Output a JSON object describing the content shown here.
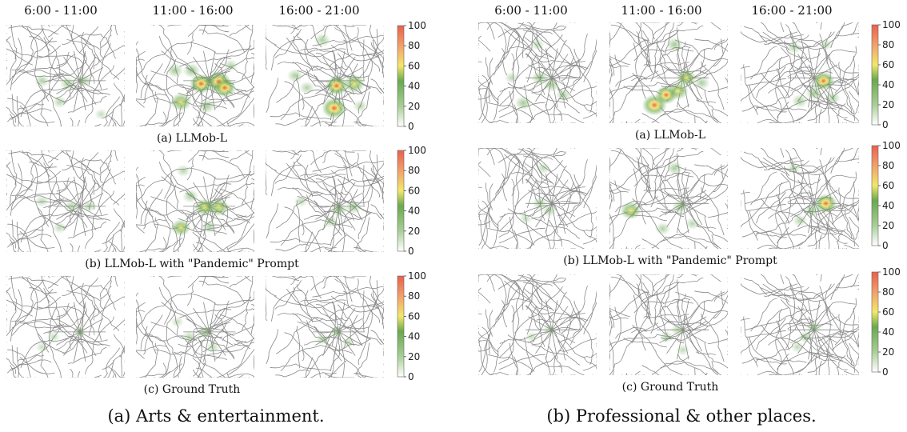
{
  "chart_data": [
    {
      "type": "heatmap",
      "subfigure_caption": "(a) Arts & entertainment.",
      "columns": [
        "6:00 - 11:00",
        "11:00 - 16:00",
        "16:00 - 21:00"
      ],
      "rows": [
        {
          "caption": "(a) LLMob-L",
          "peaks": [
            [
              {
                "x": 0.3,
                "y": 0.55,
                "v": 30
              },
              {
                "x": 0.52,
                "y": 0.58,
                "v": 35
              },
              {
                "x": 0.66,
                "y": 0.55,
                "v": 30
              },
              {
                "x": 0.45,
                "y": 0.76,
                "v": 25
              },
              {
                "x": 0.8,
                "y": 0.88,
                "v": 15
              }
            ],
            [
              {
                "x": 0.55,
                "y": 0.58,
                "v": 85
              },
              {
                "x": 0.7,
                "y": 0.56,
                "v": 90
              },
              {
                "x": 0.75,
                "y": 0.62,
                "v": 80
              },
              {
                "x": 0.38,
                "y": 0.76,
                "v": 70
              },
              {
                "x": 0.47,
                "y": 0.45,
                "v": 45
              },
              {
                "x": 0.6,
                "y": 0.8,
                "v": 40
              },
              {
                "x": 0.33,
                "y": 0.45,
                "v": 40
              },
              {
                "x": 0.8,
                "y": 0.4,
                "v": 25
              }
            ],
            [
              {
                "x": 0.58,
                "y": 0.82,
                "v": 95
              },
              {
                "x": 0.6,
                "y": 0.6,
                "v": 80
              },
              {
                "x": 0.75,
                "y": 0.58,
                "v": 70
              },
              {
                "x": 0.48,
                "y": 0.15,
                "v": 35
              },
              {
                "x": 0.25,
                "y": 0.5,
                "v": 35
              },
              {
                "x": 0.35,
                "y": 0.62,
                "v": 30
              },
              {
                "x": 0.8,
                "y": 0.8,
                "v": 25
              }
            ]
          ]
        },
        {
          "caption": "(b) LLMob-L with \"Pandemic\" Prompt",
          "peaks": [
            [
              {
                "x": 0.55,
                "y": 0.55,
                "v": 30
              },
              {
                "x": 0.7,
                "y": 0.55,
                "v": 25
              },
              {
                "x": 0.3,
                "y": 0.5,
                "v": 20
              },
              {
                "x": 0.45,
                "y": 0.76,
                "v": 20
              }
            ],
            [
              {
                "x": 0.58,
                "y": 0.56,
                "v": 65
              },
              {
                "x": 0.7,
                "y": 0.56,
                "v": 65
              },
              {
                "x": 0.38,
                "y": 0.76,
                "v": 60
              },
              {
                "x": 0.46,
                "y": 0.45,
                "v": 35
              },
              {
                "x": 0.62,
                "y": 0.75,
                "v": 30
              },
              {
                "x": 0.4,
                "y": 0.2,
                "v": 25
              }
            ],
            [
              {
                "x": 0.62,
                "y": 0.58,
                "v": 40
              },
              {
                "x": 0.74,
                "y": 0.56,
                "v": 35
              },
              {
                "x": 0.55,
                "y": 0.7,
                "v": 25
              },
              {
                "x": 0.3,
                "y": 0.5,
                "v": 20
              }
            ]
          ]
        },
        {
          "caption": "(c) Ground Truth",
          "peaks": [
            [
              {
                "x": 0.62,
                "y": 0.55,
                "v": 20
              },
              {
                "x": 0.4,
                "y": 0.6,
                "v": 15
              },
              {
                "x": 0.3,
                "y": 0.7,
                "v": 12
              }
            ],
            [
              {
                "x": 0.58,
                "y": 0.55,
                "v": 30
              },
              {
                "x": 0.45,
                "y": 0.6,
                "v": 25
              },
              {
                "x": 0.65,
                "y": 0.7,
                "v": 20
              },
              {
                "x": 0.35,
                "y": 0.45,
                "v": 15
              }
            ],
            [
              {
                "x": 0.6,
                "y": 0.55,
                "v": 25
              },
              {
                "x": 0.48,
                "y": 0.62,
                "v": 20
              },
              {
                "x": 0.7,
                "y": 0.65,
                "v": 15
              }
            ]
          ]
        }
      ],
      "colorbar": {
        "min": 0,
        "max": 100,
        "ticks": [
          0,
          20,
          40,
          60,
          80,
          100
        ]
      }
    },
    {
      "type": "heatmap",
      "subfigure_caption": "(b) Professional & other places.",
      "columns": [
        "6:00 - 11:00",
        "11:00 - 16:00",
        "16:00 - 21:00"
      ],
      "rows": [
        {
          "caption": "(a) LLMob-L",
          "peaks": [
            [
              {
                "x": 0.38,
                "y": 0.8,
                "v": 40
              },
              {
                "x": 0.52,
                "y": 0.55,
                "v": 40
              },
              {
                "x": 0.62,
                "y": 0.62,
                "v": 35
              },
              {
                "x": 0.72,
                "y": 0.72,
                "v": 30
              },
              {
                "x": 0.5,
                "y": 0.22,
                "v": 20
              },
              {
                "x": 0.28,
                "y": 0.55,
                "v": 20
              }
            ],
            [
              {
                "x": 0.38,
                "y": 0.82,
                "v": 95
              },
              {
                "x": 0.48,
                "y": 0.72,
                "v": 75
              },
              {
                "x": 0.58,
                "y": 0.68,
                "v": 65
              },
              {
                "x": 0.65,
                "y": 0.55,
                "v": 60
              },
              {
                "x": 0.55,
                "y": 0.22,
                "v": 40
              },
              {
                "x": 0.78,
                "y": 0.6,
                "v": 35
              }
            ],
            [
              {
                "x": 0.7,
                "y": 0.58,
                "v": 75
              },
              {
                "x": 0.62,
                "y": 0.7,
                "v": 40
              },
              {
                "x": 0.5,
                "y": 0.78,
                "v": 35
              },
              {
                "x": 0.78,
                "y": 0.75,
                "v": 30
              },
              {
                "x": 0.45,
                "y": 0.25,
                "v": 25
              },
              {
                "x": 0.72,
                "y": 0.22,
                "v": 20
              }
            ]
          ]
        },
        {
          "caption": "(b) LLMob-L with \"Pandemic\" Prompt",
          "peaks": [
            [
              {
                "x": 0.52,
                "y": 0.55,
                "v": 30
              },
              {
                "x": 0.6,
                "y": 0.62,
                "v": 25
              },
              {
                "x": 0.55,
                "y": 0.2,
                "v": 20
              },
              {
                "x": 0.4,
                "y": 0.7,
                "v": 15
              }
            ],
            [
              {
                "x": 0.18,
                "y": 0.62,
                "v": 70
              },
              {
                "x": 0.6,
                "y": 0.58,
                "v": 40
              },
              {
                "x": 0.55,
                "y": 0.2,
                "v": 35
              },
              {
                "x": 0.45,
                "y": 0.8,
                "v": 30
              },
              {
                "x": 0.7,
                "y": 0.75,
                "v": 25
              }
            ],
            [
              {
                "x": 0.72,
                "y": 0.55,
                "v": 80
              },
              {
                "x": 0.6,
                "y": 0.62,
                "v": 35
              },
              {
                "x": 0.5,
                "y": 0.72,
                "v": 25
              },
              {
                "x": 0.45,
                "y": 0.2,
                "v": 20
              }
            ]
          ]
        },
        {
          "caption": "(c) Ground Truth",
          "peaks": [
            [
              {
                "x": 0.6,
                "y": 0.55,
                "v": 15
              },
              {
                "x": 0.45,
                "y": 0.62,
                "v": 12
              }
            ],
            [
              {
                "x": 0.58,
                "y": 0.55,
                "v": 25
              },
              {
                "x": 0.48,
                "y": 0.62,
                "v": 20
              },
              {
                "x": 0.62,
                "y": 0.75,
                "v": 18
              }
            ],
            [
              {
                "x": 0.62,
                "y": 0.52,
                "v": 30
              },
              {
                "x": 0.55,
                "y": 0.62,
                "v": 25
              },
              {
                "x": 0.48,
                "y": 0.72,
                "v": 18
              }
            ]
          ]
        }
      ],
      "colorbar": {
        "min": 0,
        "max": 100,
        "ticks": [
          0,
          20,
          40,
          60,
          80,
          100
        ]
      }
    }
  ]
}
